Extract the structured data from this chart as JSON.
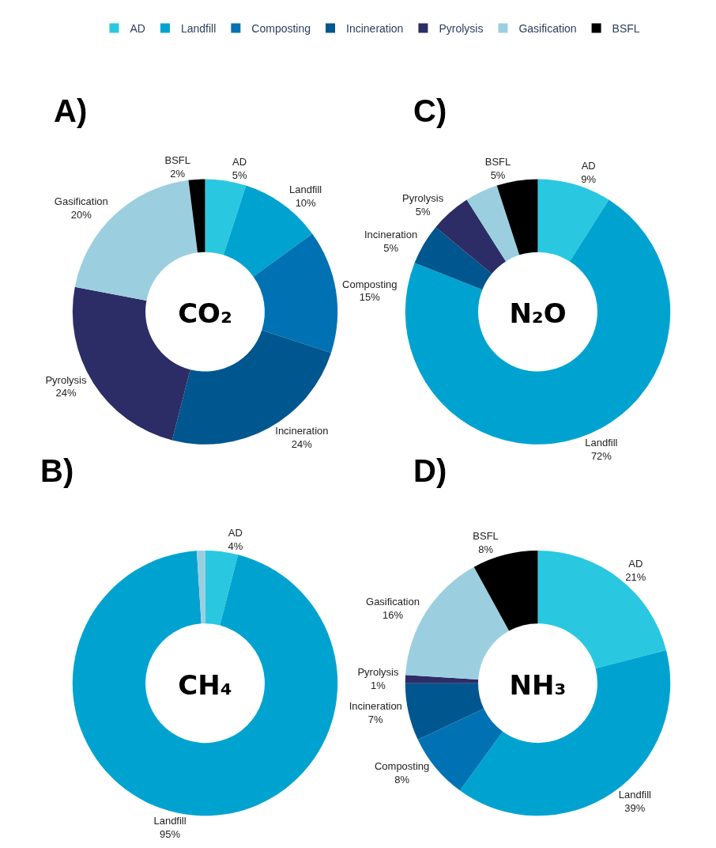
{
  "chart_data": [
    {
      "type": "donut",
      "title": "A)",
      "annotations": [
        "CO₂"
      ],
      "legend": "top",
      "categories": [
        "AD",
        "Landfill",
        "Composting",
        "Incineration",
        "Pyrolysis",
        "Gasification",
        "BSFL"
      ],
      "values": [
        5,
        10,
        15,
        24,
        24,
        20,
        2
      ],
      "value_labels": [
        "5%",
        "10%",
        "15%",
        "24%",
        "24%",
        "20%",
        "2%"
      ],
      "colors": [
        "#29c8e0",
        "#00a3d0",
        "#0072b3",
        "#00568f",
        "#2c2d66",
        "#9bcfe0",
        "#000000"
      ]
    },
    {
      "type": "donut",
      "title": "C)",
      "annotations": [
        "N₂O"
      ],
      "categories": [
        "AD",
        "Landfill",
        "Incineration",
        "Pyrolysis",
        null,
        "BSFL"
      ],
      "values": [
        9,
        72,
        5,
        5,
        4,
        5
      ],
      "value_labels": [
        "9%",
        "72%",
        "5%",
        "5%",
        null,
        "5%"
      ],
      "colors": [
        "#29c8e0",
        "#00a3d0",
        "#00568f",
        "#2c2d66",
        "#9bcfe0",
        "#000000"
      ]
    },
    {
      "type": "donut",
      "title": "B)",
      "annotations": [
        "CH₄"
      ],
      "categories": [
        "AD",
        "Landfill",
        null
      ],
      "values": [
        4,
        95,
        1
      ],
      "value_labels": [
        "4%",
        "95%",
        null
      ],
      "colors": [
        "#29c8e0",
        "#00a3d0",
        "#9bcfe0"
      ]
    },
    {
      "type": "donut",
      "title": "D)",
      "annotations": [
        "NH₃"
      ],
      "categories": [
        "AD",
        "Landfill",
        "Composting",
        "Incineration",
        "Pyrolysis",
        "Gasification",
        "BSFL"
      ],
      "values": [
        21,
        39,
        8,
        7,
        1,
        16,
        8
      ],
      "value_labels": [
        "21%",
        "39%",
        "8%",
        "7%",
        "1%",
        "16%",
        "8%"
      ],
      "colors": [
        "#29c8e0",
        "#00a3d0",
        "#0072b3",
        "#00568f",
        "#2c2d66",
        "#9bcfe0",
        "#000000"
      ]
    }
  ]
}
